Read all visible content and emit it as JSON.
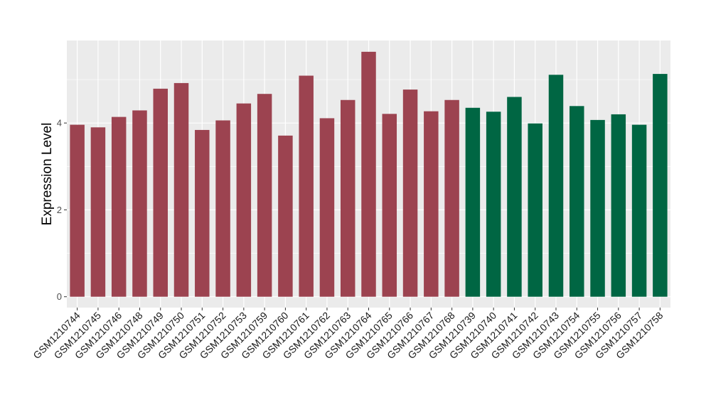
{
  "chart_data": {
    "type": "bar",
    "ylabel": "Expression Level",
    "xlabel": "",
    "ylim": [
      -0.25,
      5.9
    ],
    "yticks": [
      0,
      2,
      4
    ],
    "grid": true,
    "colors": {
      "group_a": "#9c4350",
      "group_b": "#006643",
      "panel": "#ebebeb",
      "gridline": "#ffffff"
    },
    "categories": [
      "GSM1210744",
      "GSM1210745",
      "GSM1210746",
      "GSM1210748",
      "GSM1210749",
      "GSM1210750",
      "GSM1210751",
      "GSM1210752",
      "GSM1210753",
      "GSM1210759",
      "GSM1210760",
      "GSM1210761",
      "GSM1210762",
      "GSM1210763",
      "GSM1210764",
      "GSM1210765",
      "GSM1210766",
      "GSM1210767",
      "GSM1210768",
      "GSM1210739",
      "GSM1210740",
      "GSM1210741",
      "GSM1210742",
      "GSM1210743",
      "GSM1210754",
      "GSM1210755",
      "GSM1210756",
      "GSM1210757",
      "GSM1210758"
    ],
    "values": [
      3.96,
      3.9,
      4.14,
      4.29,
      4.79,
      4.92,
      3.84,
      4.06,
      4.45,
      4.67,
      3.71,
      5.09,
      4.11,
      4.53,
      5.64,
      4.21,
      4.77,
      4.27,
      4.53,
      4.35,
      4.26,
      4.6,
      3.99,
      5.11,
      4.39,
      4.07,
      4.2,
      3.96,
      5.13
    ],
    "groups": [
      "a",
      "a",
      "a",
      "a",
      "a",
      "a",
      "a",
      "a",
      "a",
      "a",
      "a",
      "a",
      "a",
      "a",
      "a",
      "a",
      "a",
      "a",
      "a",
      "b",
      "b",
      "b",
      "b",
      "b",
      "b",
      "b",
      "b",
      "b",
      "b"
    ]
  }
}
